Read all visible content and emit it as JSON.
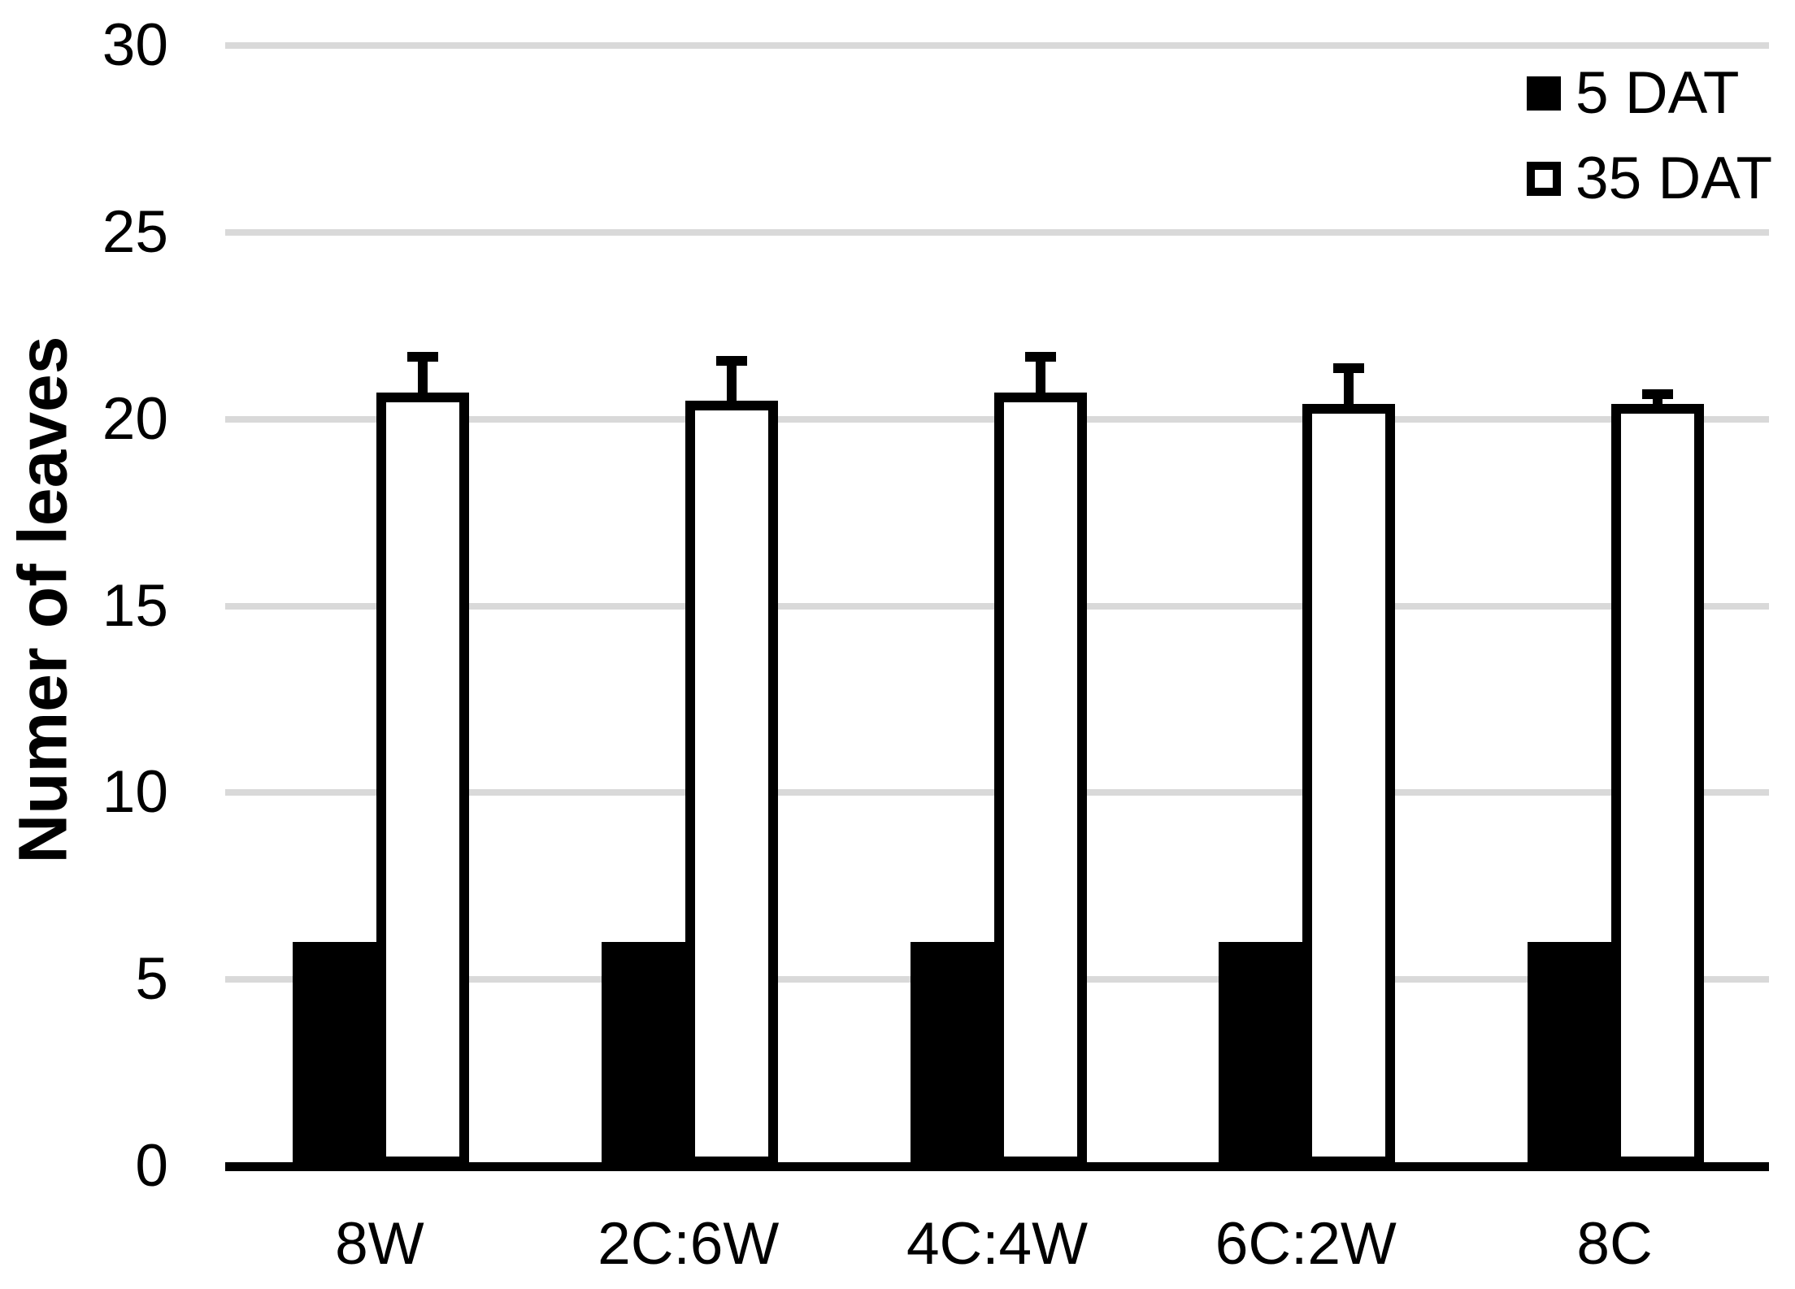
{
  "figure": {
    "background": "#ffffff",
    "bar_fill_series1": "#000000",
    "bar_fill_series2": "#ffffff",
    "bar_outline": "#000000",
    "gridline_color": "#d9d9d9",
    "axis_color": "#000000",
    "text_color": "#000000"
  },
  "chart_data": {
    "type": "bar",
    "title": "",
    "xlabel": "",
    "ylabel": "Numer of leaves",
    "categories": [
      "8W",
      "2C:6W",
      "4C:4W",
      "6C:2W",
      "8C"
    ],
    "series": [
      {
        "name": "5 DAT",
        "style": "filled",
        "values": [
          6,
          6,
          6,
          6,
          6
        ],
        "errors_plus": [
          0,
          0,
          0,
          0,
          0
        ]
      },
      {
        "name": "35 DAT",
        "style": "open",
        "values": [
          20.7,
          20.5,
          20.7,
          20.4,
          20.4
        ],
        "errors_plus": [
          1.1,
          1.2,
          1.1,
          1.1,
          0.4
        ]
      }
    ],
    "ylim": [
      0,
      30
    ],
    "yticks": [
      0,
      5,
      10,
      15,
      20,
      25,
      30
    ],
    "grid": "horizontal",
    "legend_position": "top-right"
  }
}
